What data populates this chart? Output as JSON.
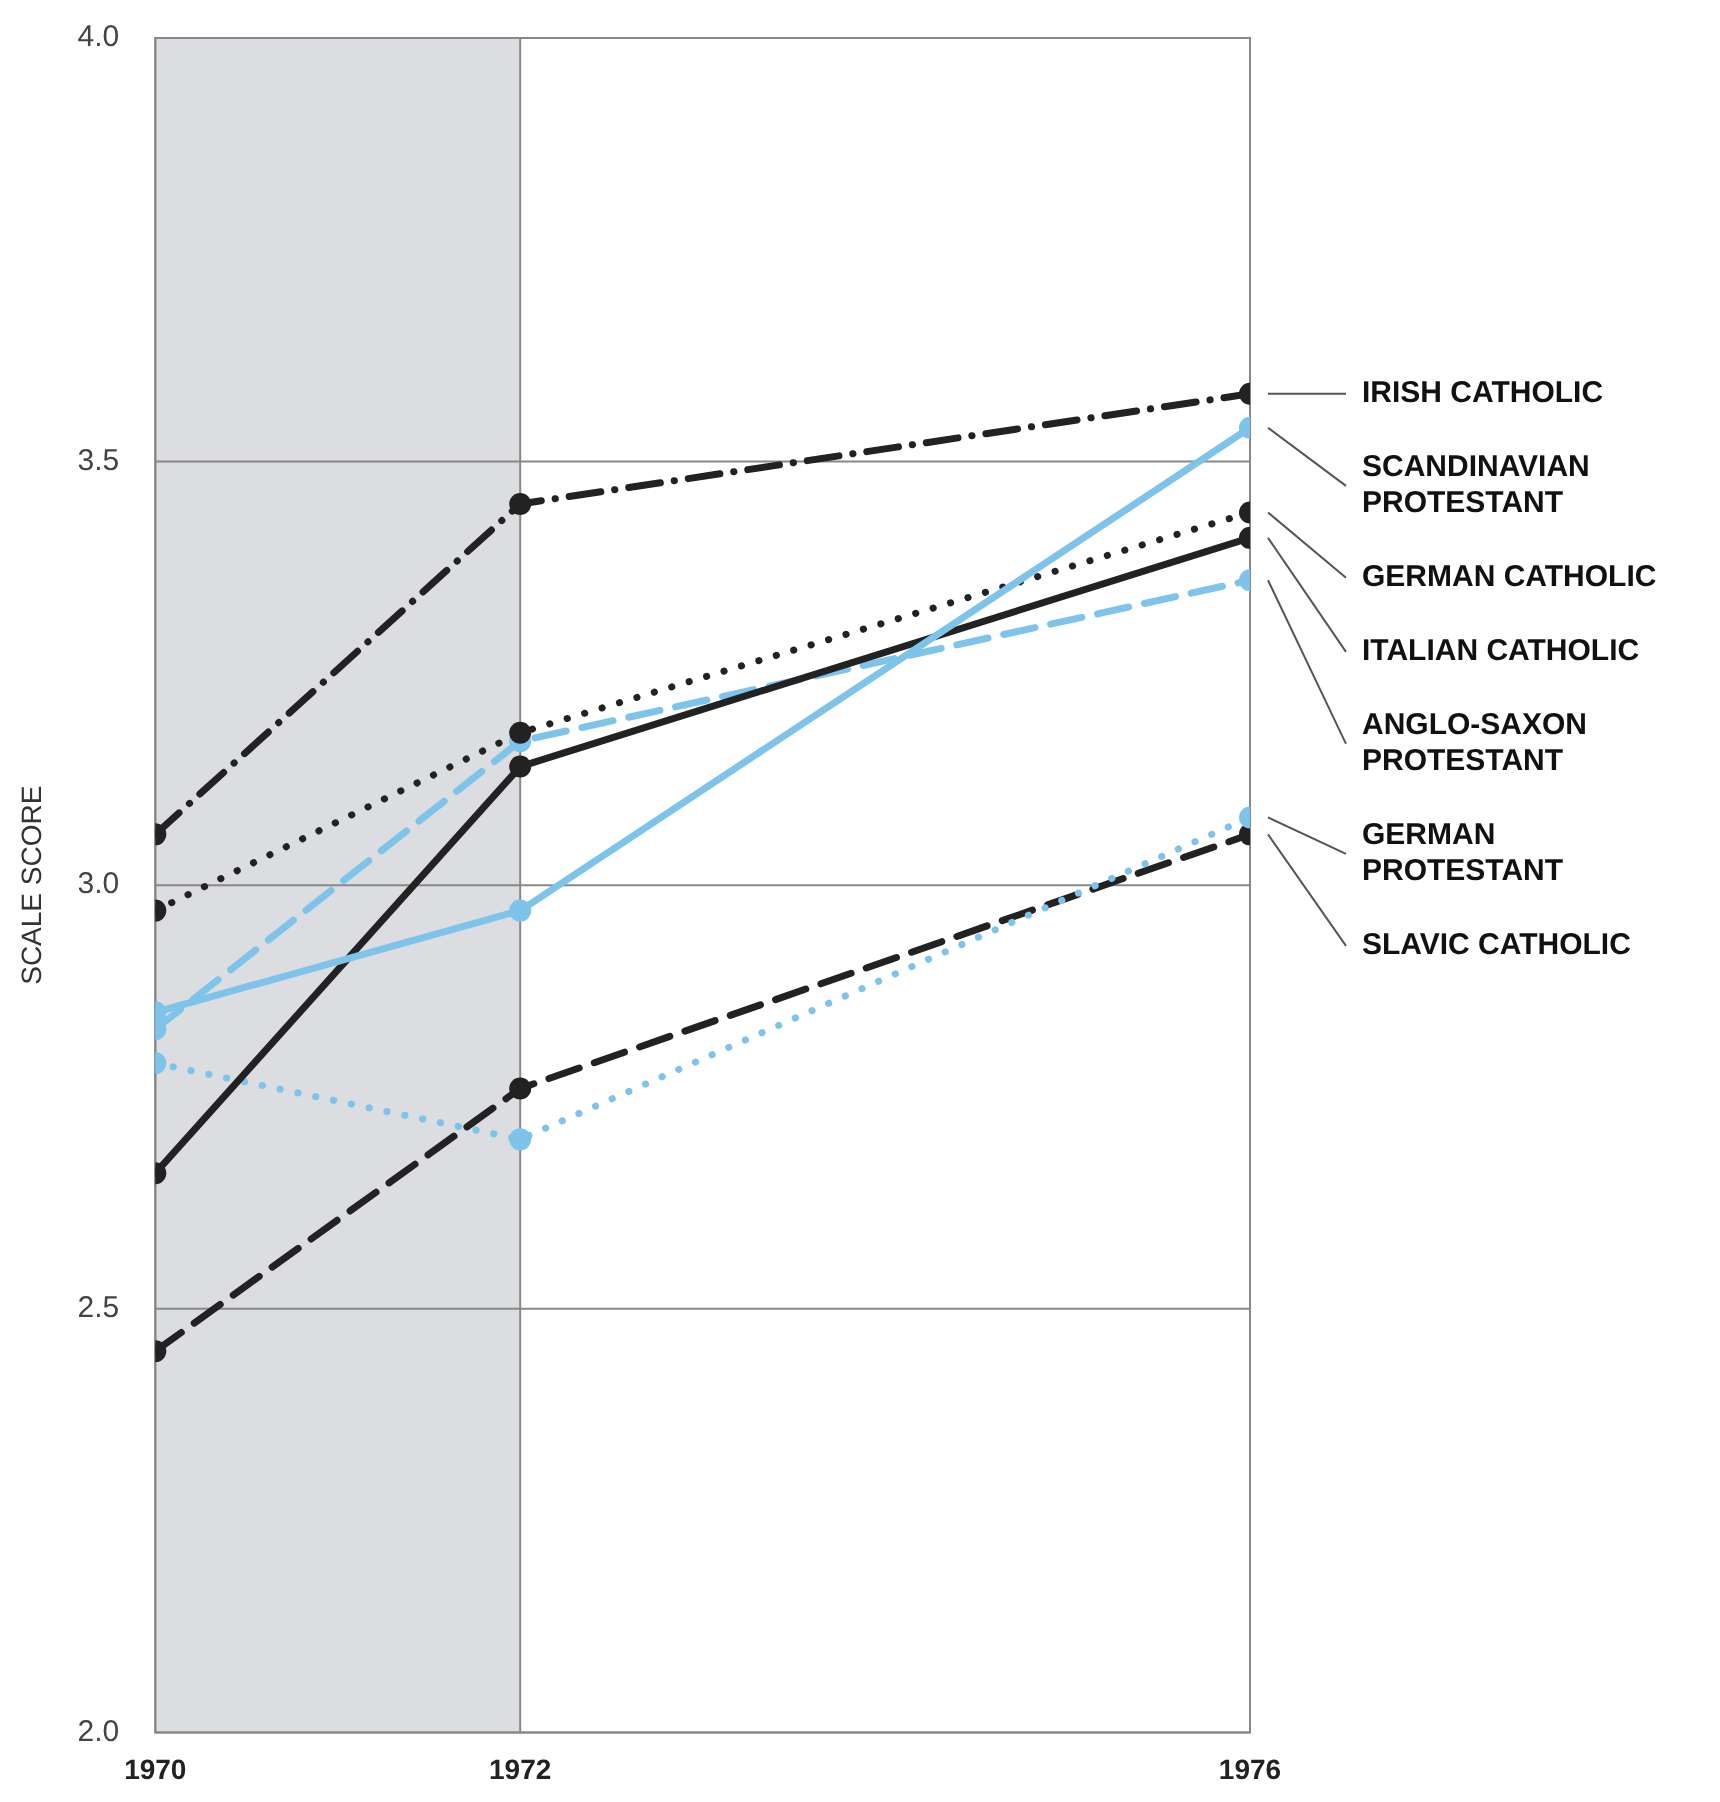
{
  "chart_data": {
    "type": "line",
    "ylabel": "SCALE SCORE",
    "x": [
      1970,
      1972,
      1976
    ],
    "xlim": [
      1970,
      1976
    ],
    "xticks": [
      1970,
      1972,
      1976
    ],
    "ylim": [
      2.0,
      4.0
    ],
    "yticks": [
      {
        "value": 2.0,
        "label": "2.0"
      },
      2.5,
      {
        "value": 3.0,
        "label": "3.0"
      },
      3.5,
      {
        "value": 4.0,
        "label": "4.0"
      }
    ],
    "grid": true,
    "legend": false,
    "marker": "circle",
    "bands": [
      {
        "axis": "x",
        "from": 1970,
        "to": 1972,
        "color": "#dcdde0"
      }
    ],
    "series": [
      {
        "name": "IRISH CATHOLIC",
        "color": "#222222",
        "line_style": "dashdot",
        "values": [
          3.06,
          3.45,
          3.58
        ]
      },
      {
        "name": "SCANDINAVIAN PROTESTANT",
        "color": "#7ec3ea",
        "line_style": "solid",
        "values": [
          2.85,
          2.97,
          3.54
        ]
      },
      {
        "name": "GERMAN CATHOLIC",
        "color": "#222222",
        "line_style": "dotted",
        "values": [
          2.97,
          3.18,
          3.44
        ]
      },
      {
        "name": "ITALIAN CATHOLIC",
        "color": "#222222",
        "line_style": "solid",
        "values": [
          2.66,
          3.14,
          3.41
        ]
      },
      {
        "name": "ANGLO-SAXON PROTESTANT",
        "color": "#7ec3ea",
        "line_style": "dashed",
        "values": [
          2.83,
          3.17,
          3.36
        ]
      },
      {
        "name": "GERMAN PROTESTANT",
        "color": "#7ec3ea",
        "line_style": "dotted",
        "values": [
          2.79,
          2.7,
          3.08
        ]
      },
      {
        "name": "SLAVIC CATHOLIC",
        "color": "#222222",
        "line_style": "dashed",
        "values": [
          2.45,
          2.76,
          3.06
        ]
      }
    ]
  }
}
